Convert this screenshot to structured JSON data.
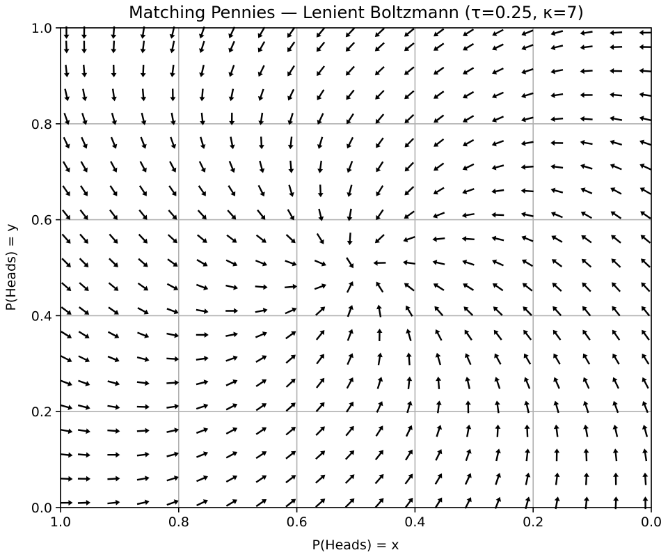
{
  "chart_data": {
    "type": "quiver",
    "title": "Matching Pennies — Lenient Boltzmann (τ=0.25, κ=7)",
    "xlabel": "P(Heads) = x",
    "ylabel": "P(Heads) = y",
    "xlim": [
      1.0,
      0.0
    ],
    "ylim": [
      0.0,
      1.0
    ],
    "x_inverted": true,
    "grid": true,
    "xticks": [
      "1.0",
      "0.8",
      "0.6",
      "0.4",
      "0.2",
      "0.0"
    ],
    "yticks": [
      "0.0",
      "0.2",
      "0.4",
      "0.6",
      "0.8",
      "1.0"
    ],
    "grid_x": [
      0.01,
      0.06,
      0.11,
      0.16,
      0.21,
      0.26,
      0.31,
      0.36,
      0.41,
      0.46,
      0.51,
      0.56,
      0.61,
      0.66,
      0.71,
      0.76,
      0.81,
      0.86,
      0.91,
      0.96,
      0.99
    ],
    "grid_y": [
      0.01,
      0.06,
      0.11,
      0.16,
      0.21,
      0.26,
      0.31,
      0.36,
      0.41,
      0.46,
      0.51,
      0.56,
      0.61,
      0.66,
      0.71,
      0.76,
      0.81,
      0.86,
      0.91,
      0.96,
      0.99
    ],
    "equilibrium": [
      0.5,
      0.5
    ],
    "arrow_color": "#000000",
    "grid_color": "#b0b0b0"
  }
}
